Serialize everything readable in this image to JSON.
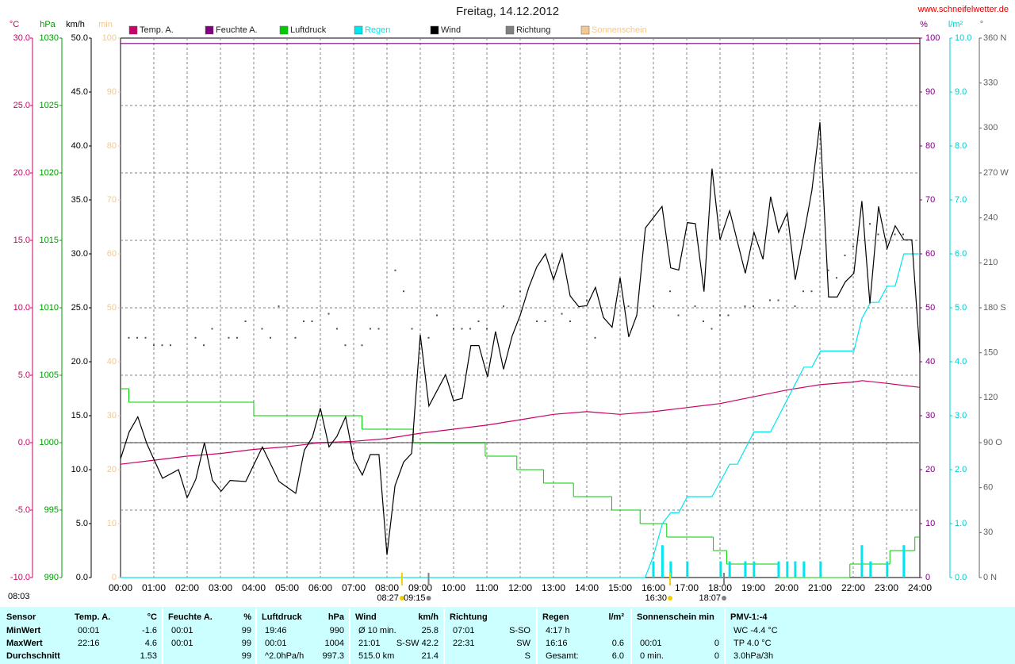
{
  "chart_data": {
    "type": "line",
    "title": "Freitag, 14.12.2012",
    "source": "www.schneifelwetter.de",
    "grid": true,
    "xlim": [
      0,
      24
    ],
    "xticks": [
      {
        "value": 0,
        "label": "00:00"
      },
      {
        "value": 1,
        "label": "01:00"
      },
      {
        "value": 2,
        "label": "02:00"
      },
      {
        "value": 3,
        "label": "03:00"
      },
      {
        "value": 4,
        "label": "04:00"
      },
      {
        "value": 5,
        "label": "05:00"
      },
      {
        "value": 6,
        "label": "06:00"
      },
      {
        "value": 7,
        "label": "07:00"
      },
      {
        "value": 8,
        "label": "08:00"
      },
      {
        "value": 9,
        "label": "09:00"
      },
      {
        "value": 10,
        "label": "10:00"
      },
      {
        "value": 11,
        "label": "11:00"
      },
      {
        "value": 12,
        "label": "12:00"
      },
      {
        "value": 13,
        "label": "13:00"
      },
      {
        "value": 14,
        "label": "14:00"
      },
      {
        "value": 15,
        "label": "15:00"
      },
      {
        "value": 16,
        "label": "16:00"
      },
      {
        "value": 17,
        "label": "17:00"
      },
      {
        "value": 18,
        "label": "18:00"
      },
      {
        "value": 19,
        "label": "19:00"
      },
      {
        "value": 20,
        "label": "20:00"
      },
      {
        "value": 21,
        "label": "21:00"
      },
      {
        "value": 22,
        "label": "22:00"
      },
      {
        "value": 23,
        "label": "23:00"
      },
      {
        "value": 24,
        "label": "24:00"
      }
    ],
    "axes": [
      {
        "unit": "°C",
        "color": "#cc0066",
        "lim": [
          -10,
          30
        ],
        "ticks": [
          {
            "value": -10,
            "label": "-10.0"
          },
          {
            "value": -5,
            "label": "-5.0"
          },
          {
            "value": 0,
            "label": "0.0"
          },
          {
            "value": 5,
            "label": "5.0"
          },
          {
            "value": 10,
            "label": "10.0"
          },
          {
            "value": 15,
            "label": "15.0"
          },
          {
            "value": 20,
            "label": "20.0"
          },
          {
            "value": 25,
            "label": "25.0"
          },
          {
            "value": 30,
            "label": "30.0"
          }
        ]
      },
      {
        "unit": "hPa",
        "color": "#009900",
        "lim": [
          990,
          1030
        ],
        "ticks": [
          990,
          995,
          1000,
          1005,
          1010,
          1015,
          1020,
          1025,
          1030
        ]
      },
      {
        "unit": "km/h",
        "color": "#000000",
        "lim": [
          0,
          50
        ],
        "ticks": [
          {
            "value": 0,
            "label": "0.0"
          },
          {
            "value": 5,
            "label": "5.0"
          },
          {
            "value": 10,
            "label": "10.0"
          },
          {
            "value": 15,
            "label": "15.0"
          },
          {
            "value": 20,
            "label": "20.0"
          },
          {
            "value": 25,
            "label": "25.0"
          },
          {
            "value": 30,
            "label": "30.0"
          },
          {
            "value": 35,
            "label": "35.0"
          },
          {
            "value": 40,
            "label": "40.0"
          },
          {
            "value": 45,
            "label": "45.0"
          },
          {
            "value": 50,
            "label": "50.0"
          }
        ]
      },
      {
        "unit": "min",
        "color": "#f0c890",
        "lim": [
          0,
          100
        ],
        "ticks": [
          0,
          10,
          20,
          30,
          40,
          50,
          60,
          70,
          80,
          90,
          100
        ]
      },
      {
        "unit": "%",
        "color": "#800080",
        "lim": [
          0,
          100
        ],
        "ticks": [
          0,
          10,
          20,
          30,
          40,
          50,
          60,
          70,
          80,
          90,
          100
        ]
      },
      {
        "unit": "l/m²",
        "color": "#00cccc",
        "lim": [
          0,
          10
        ],
        "ticks": [
          {
            "value": 0,
            "label": "0.0"
          },
          {
            "value": 1,
            "label": "1.0"
          },
          {
            "value": 2,
            "label": "2.0"
          },
          {
            "value": 3,
            "label": "3.0"
          },
          {
            "value": 4,
            "label": "4.0"
          },
          {
            "value": 5,
            "label": "5.0"
          },
          {
            "value": 6,
            "label": "6.0"
          },
          {
            "value": 7,
            "label": "7.0"
          },
          {
            "value": 8,
            "label": "8.0"
          },
          {
            "value": 9,
            "label": "9.0"
          },
          {
            "value": 10,
            "label": "10.0"
          }
        ]
      },
      {
        "unit": "°",
        "color": "#606060",
        "lim": [
          0,
          360
        ],
        "ticks": [
          {
            "value": 0,
            "label": "0 N"
          },
          30,
          60,
          {
            "value": 90,
            "label": "90 O"
          },
          120,
          150,
          {
            "value": 180,
            "label": "180 S"
          },
          210,
          240,
          {
            "value": 270,
            "label": "270 W"
          },
          300,
          330,
          {
            "value": 360,
            "label": "360 N"
          }
        ]
      }
    ],
    "series": [
      {
        "name": "Temp. A.",
        "color": "#cc0066",
        "axis": 0,
        "x": [
          0,
          1,
          2,
          3,
          4,
          5,
          6,
          7,
          8,
          9,
          10,
          11,
          12,
          13,
          14,
          15,
          16,
          17,
          18,
          19,
          20,
          21,
          22,
          22.27,
          23,
          24
        ],
        "values": [
          -1.6,
          -1.3,
          -1.0,
          -0.8,
          -0.5,
          -0.3,
          0.0,
          0.1,
          0.3,
          0.7,
          1.0,
          1.3,
          1.7,
          2.1,
          2.3,
          2.1,
          2.3,
          2.6,
          2.9,
          3.4,
          3.9,
          4.3,
          4.5,
          4.6,
          4.4,
          4.1
        ]
      },
      {
        "name": "Feuchte A.",
        "color": "#800080",
        "axis": 4,
        "x": [
          0,
          24
        ],
        "values": [
          99,
          99
        ]
      },
      {
        "name": "Luftdruck",
        "color": "#00cc00",
        "axis": 1,
        "step": true,
        "x": [
          0,
          0.25,
          4.0,
          7.25,
          8.8,
          10.95,
          11.9,
          12.7,
          13.6,
          14.75,
          15.6,
          16.4,
          17.8,
          18.2,
          19.76,
          21.9,
          23.1,
          23.85,
          24
        ],
        "values": [
          1004,
          1003,
          1002,
          1001,
          1000,
          999,
          998,
          997,
          996,
          995,
          994,
          993,
          992,
          991,
          990,
          991,
          992,
          993,
          993
        ]
      },
      {
        "name": "Regen",
        "color": "#00e5ee",
        "axis": 5,
        "x": [
          0,
          15.75,
          16.0,
          16.27,
          16.52,
          16.76,
          17.02,
          17.76,
          18.29,
          18.52,
          19.02,
          19.52,
          20.52,
          20.76,
          21.02,
          22.02,
          22.26,
          22.52,
          22.76,
          23.02,
          23.26,
          23.52,
          23.76,
          24
        ],
        "values": [
          0,
          0,
          0.4,
          1.0,
          1.2,
          1.2,
          1.5,
          1.5,
          2.1,
          2.1,
          2.7,
          2.7,
          3.9,
          3.9,
          4.2,
          4.2,
          4.8,
          5.1,
          5.1,
          5.4,
          5.4,
          6.0,
          6.0,
          6.0
        ],
        "bar_x": [
          16.0,
          16.27,
          16.52,
          17.02,
          18.02,
          18.29,
          18.76,
          19.02,
          19.76,
          20.02,
          20.26,
          20.52,
          21.02,
          22.26,
          22.52,
          23.02,
          23.52
        ],
        "bar_values": [
          0.3,
          0.6,
          0.3,
          0.3,
          0.3,
          0.3,
          0.3,
          0.3,
          0.3,
          0.3,
          0.3,
          0.3,
          0.3,
          0.6,
          0.3,
          0.3,
          0.6
        ]
      },
      {
        "name": "Wind",
        "color": "#000000",
        "axis": 2,
        "x": [
          0,
          0.26,
          0.52,
          0.79,
          1.26,
          1.74,
          2.0,
          2.26,
          2.52,
          2.76,
          3.02,
          3.29,
          3.76,
          4.26,
          4.76,
          5.26,
          5.52,
          5.76,
          6.0,
          6.26,
          6.5,
          6.76,
          7.0,
          7.26,
          7.5,
          7.76,
          8.0,
          8.24,
          8.5,
          8.74,
          9.0,
          9.26,
          9.5,
          9.76,
          10.0,
          10.26,
          10.52,
          10.76,
          11.02,
          11.26,
          11.5,
          11.76,
          12.0,
          12.26,
          12.5,
          12.76,
          13.0,
          13.26,
          13.5,
          13.76,
          14.0,
          14.26,
          14.5,
          14.76,
          15.0,
          15.26,
          15.5,
          15.76,
          16.26,
          16.52,
          16.76,
          17.02,
          17.26,
          17.52,
          17.76,
          18.0,
          18.29,
          18.76,
          19.02,
          19.29,
          19.52,
          19.76,
          20.02,
          20.26,
          20.5,
          20.76,
          21.0,
          21.26,
          21.52,
          21.76,
          22.02,
          22.26,
          22.5,
          22.76,
          23.02,
          23.26,
          23.52,
          23.76,
          24.0
        ],
        "values": [
          11.0,
          13.5,
          14.9,
          12.4,
          9.2,
          10.0,
          7.4,
          9.1,
          12.5,
          9.0,
          8.0,
          9.0,
          8.9,
          12.1,
          8.9,
          7.8,
          11.8,
          13.0,
          15.7,
          12.1,
          13.1,
          14.9,
          11.0,
          9.5,
          11.4,
          11.4,
          2.1,
          8.5,
          10.7,
          11.5,
          22.5,
          15.9,
          17.3,
          18.8,
          16.4,
          16.6,
          21.5,
          21.5,
          18.6,
          22.8,
          19.3,
          22.4,
          24.3,
          26.9,
          28.8,
          30.0,
          27.6,
          30.0,
          26.1,
          25.1,
          25.2,
          26.9,
          24.1,
          23.2,
          27.8,
          22.3,
          24.3,
          32.4,
          34.4,
          28.7,
          28.5,
          32.9,
          32.8,
          26.5,
          37.9,
          31.3,
          34.0,
          28.2,
          32.0,
          29.5,
          35.3,
          32.0,
          33.8,
          27.6,
          31.5,
          35.9,
          42.2,
          26.0,
          26.0,
          27.4,
          28.2,
          34.9,
          25.4,
          34.4,
          30.5,
          32.6,
          31.3,
          31.3,
          20.8
        ]
      },
      {
        "name": "Richtung",
        "color": "#808080",
        "axis": 6,
        "dots": true,
        "x": [
          0.25,
          0.5,
          0.75,
          1,
          1.25,
          1.5,
          2.25,
          2.5,
          2.75,
          3.25,
          3.5,
          3.75,
          4.25,
          4.5,
          4.75,
          5.25,
          5.5,
          5.75,
          6.25,
          6.5,
          6.75,
          7.25,
          7.5,
          7.75,
          8.25,
          8.5,
          8.75,
          9.25,
          9.5,
          10,
          10.25,
          10.5,
          10.75,
          11,
          11.5,
          12,
          12.5,
          12.75,
          13.25,
          13.5,
          14,
          14.25,
          15.25,
          16,
          16.5,
          16.75,
          17.25,
          17.5,
          17.75,
          18,
          18.25,
          18.75,
          19,
          19.5,
          19.75,
          20.25,
          20.5,
          20.75,
          21.25,
          21.5,
          21.75,
          22,
          22.5,
          22.75,
          23,
          23.25,
          23.5
        ],
        "values": [
          160,
          160,
          160,
          155,
          155,
          155,
          160,
          155,
          166,
          160,
          160,
          171,
          166,
          160,
          181,
          160,
          171,
          171,
          176,
          166,
          155,
          155,
          166,
          166,
          205,
          191,
          166,
          160,
          175,
          166,
          166,
          166,
          171,
          166,
          181,
          191,
          171,
          171,
          176,
          171,
          185,
          160,
          181,
          181,
          191,
          175,
          181,
          171,
          166,
          175,
          175,
          181,
          181,
          185,
          185,
          181,
          191,
          191,
          205,
          200,
          215,
          221,
          236,
          229,
          224,
          229,
          229
        ]
      },
      {
        "name": "Sonnenschein",
        "color": "#f5c890",
        "axis": 3
      }
    ],
    "annotations": [
      {
        "label": "08:27",
        "x": 8.45,
        "color": "#f0d000"
      },
      {
        "label": "09:15",
        "x": 9.25,
        "color": "#808080"
      },
      {
        "label": "16:30",
        "x": 16.5,
        "color": "#f0d000"
      },
      {
        "label": "18:07",
        "x": 18.12,
        "color": "#808080"
      }
    ],
    "footnote": "08:03"
  },
  "table": {
    "columns": [
      {
        "title": "Sensor"
      },
      {
        "title": "Temp. A.",
        "unit": "°C"
      },
      {
        "title": "Feuchte A.",
        "unit": "%"
      },
      {
        "title": "Luftdruck",
        "unit": "hPa"
      },
      {
        "title": "Wind",
        "unit": "km/h"
      },
      {
        "title": "Richtung"
      },
      {
        "title": "Regen",
        "unit": "l/m²"
      },
      {
        "title": "Sonnenschein min"
      },
      {
        "title": "PMV-1:-4"
      }
    ],
    "rows": [
      {
        "label": "MinWert",
        "cells": [
          {
            "l": "00:01",
            "r": "-1.6"
          },
          {
            "l": "00:01",
            "r": "99"
          },
          {
            "l": "19:46",
            "r": "990"
          },
          {
            "l": "Ø 10 min.",
            "r": "25.8"
          },
          {
            "l": "07:01",
            "r": "S-SO"
          },
          {
            "l": "4:17 h"
          },
          {},
          {
            "l": "WC -4.4 °C"
          }
        ]
      },
      {
        "label": "MaxWert",
        "cells": [
          {
            "l": "22:16",
            "r": "4.6"
          },
          {
            "l": "00:01",
            "r": "99"
          },
          {
            "l": "00:01",
            "r": "1004"
          },
          {
            "l": "21:01",
            "r": "S-SW 42.2"
          },
          {
            "l": "22:31",
            "r": "SW"
          },
          {
            "l": "16:16",
            "r": "0.6"
          },
          {
            "l": "00:01",
            "r": "0"
          },
          {
            "l": "TP 4.0 °C"
          }
        ]
      },
      {
        "label": "Durchschnitt",
        "cells": [
          {
            "r": "1.53"
          },
          {
            "r": "99"
          },
          {
            "l": "^2.0hPa/h",
            "r": "997.3"
          },
          {
            "l": "515.0 km",
            "r": "21.4"
          },
          {
            "r": "S"
          },
          {
            "l": "Gesamt:",
            "r": "6.0"
          },
          {
            "l": "0 min.",
            "r": "0"
          },
          {
            "l": "3.0hPa/3h"
          }
        ]
      }
    ]
  }
}
